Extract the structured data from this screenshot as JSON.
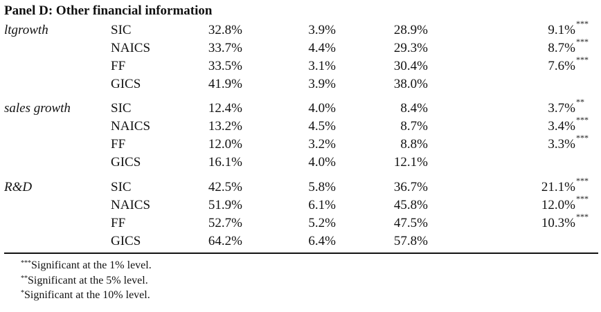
{
  "panel_title": "Panel D: Other financial information",
  "groups": [
    {
      "variable": "ltgrowth",
      "rows": [
        {
          "cls": "SIC",
          "v1": "32.8%",
          "v2": "3.9%",
          "v3": "28.9%",
          "v4": "9.1%",
          "sig": "***"
        },
        {
          "cls": "NAICS",
          "v1": "33.7%",
          "v2": "4.4%",
          "v3": "29.3%",
          "v4": "8.7%",
          "sig": "***"
        },
        {
          "cls": "FF",
          "v1": "33.5%",
          "v2": "3.1%",
          "v3": "30.4%",
          "v4": "7.6%",
          "sig": "***"
        },
        {
          "cls": "GICS",
          "v1": "41.9%",
          "v2": "3.9%",
          "v3": "38.0%",
          "v4": "",
          "sig": ""
        }
      ]
    },
    {
      "variable": "sales growth",
      "rows": [
        {
          "cls": "SIC",
          "v1": "12.4%",
          "v2": "4.0%",
          "v3": "8.4%",
          "v4": "3.7%",
          "sig": "**"
        },
        {
          "cls": "NAICS",
          "v1": "13.2%",
          "v2": "4.5%",
          "v3": "8.7%",
          "v4": "3.4%",
          "sig": "***"
        },
        {
          "cls": "FF",
          "v1": "12.0%",
          "v2": "3.2%",
          "v3": "8.8%",
          "v4": "3.3%",
          "sig": "***"
        },
        {
          "cls": "GICS",
          "v1": "16.1%",
          "v2": "4.0%",
          "v3": "12.1%",
          "v4": "",
          "sig": ""
        }
      ]
    },
    {
      "variable": "R&D",
      "rows": [
        {
          "cls": "SIC",
          "v1": "42.5%",
          "v2": "5.8%",
          "v3": "36.7%",
          "v4": "21.1%",
          "sig": "***"
        },
        {
          "cls": "NAICS",
          "v1": "51.9%",
          "v2": "6.1%",
          "v3": "45.8%",
          "v4": "12.0%",
          "sig": "***"
        },
        {
          "cls": "FF",
          "v1": "52.7%",
          "v2": "5.2%",
          "v3": "47.5%",
          "v4": "10.3%",
          "sig": "***"
        },
        {
          "cls": "GICS",
          "v1": "64.2%",
          "v2": "6.4%",
          "v3": "57.8%",
          "v4": "",
          "sig": ""
        }
      ]
    }
  ],
  "footnotes": [
    {
      "mark": "***",
      "text": "Significant at the 1% level."
    },
    {
      "mark": "**",
      "text": "Significant at the 5% level."
    },
    {
      "mark": "*",
      "text": "Significant at the 10% level."
    }
  ]
}
